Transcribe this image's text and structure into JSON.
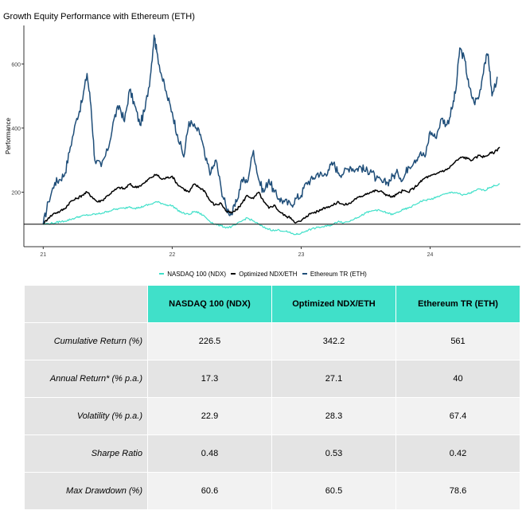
{
  "chart_data": {
    "type": "line",
    "title": "Growth Equity Performance with Ethereum (ETH)",
    "xlabel": "",
    "ylabel": "Performance",
    "x_ticks": [
      "21",
      "22",
      "23",
      "24"
    ],
    "y_ticks": [
      200,
      400,
      600
    ],
    "ylim": [
      30,
      720
    ],
    "xlim": [
      2020.85,
      2024.7
    ],
    "reference_line": 100,
    "grid": false,
    "legend_position": "bottom",
    "series": [
      {
        "name": "Ethereum TR (ETH)",
        "color": "#1f4e79",
        "x": [
          2021.0,
          2021.04,
          2021.09,
          2021.13,
          2021.17,
          2021.21,
          2021.26,
          2021.3,
          2021.34,
          2021.37,
          2021.4,
          2021.45,
          2021.5,
          2021.55,
          2021.59,
          2021.63,
          2021.67,
          2021.71,
          2021.75,
          2021.79,
          2021.83,
          2021.86,
          2021.88,
          2021.92,
          2021.96,
          2022.0,
          2022.04,
          2022.09,
          2022.13,
          2022.18,
          2022.22,
          2022.26,
          2022.3,
          2022.34,
          2022.38,
          2022.42,
          2022.46,
          2022.5,
          2022.54,
          2022.58,
          2022.63,
          2022.67,
          2022.71,
          2022.75,
          2022.79,
          2022.83,
          2022.87,
          2022.92,
          2022.96,
          2023.0,
          2023.04,
          2023.09,
          2023.13,
          2023.17,
          2023.21,
          2023.25,
          2023.29,
          2023.33,
          2023.38,
          2023.42,
          2023.46,
          2023.5,
          2023.54,
          2023.58,
          2023.63,
          2023.67,
          2023.71,
          2023.75,
          2023.79,
          2023.83,
          2023.88,
          2023.92,
          2023.96,
          2024.0,
          2024.04,
          2024.09,
          2024.13,
          2024.17,
          2024.2,
          2024.23,
          2024.27,
          2024.3,
          2024.34,
          2024.38,
          2024.42,
          2024.45,
          2024.48,
          2024.52
        ],
        "values": [
          100,
          170,
          230,
          240,
          260,
          340,
          430,
          480,
          570,
          470,
          300,
          280,
          330,
          430,
          470,
          420,
          520,
          470,
          410,
          460,
          560,
          690,
          640,
          560,
          500,
          450,
          380,
          310,
          420,
          400,
          380,
          300,
          260,
          300,
          210,
          150,
          130,
          170,
          240,
          230,
          330,
          240,
          200,
          240,
          200,
          180,
          170,
          160,
          180,
          190,
          230,
          240,
          260,
          250,
          270,
          290,
          260,
          260,
          280,
          270,
          280,
          265,
          270,
          240,
          230,
          230,
          250,
          260,
          240,
          280,
          300,
          320,
          310,
          390,
          370,
          430,
          410,
          460,
          520,
          650,
          610,
          530,
          480,
          500,
          600,
          630,
          500,
          560
        ]
      },
      {
        "name": "Optimized NDX/ETH",
        "color": "#000000",
        "x": [
          2021.0,
          2021.04,
          2021.09,
          2021.13,
          2021.17,
          2021.21,
          2021.26,
          2021.3,
          2021.34,
          2021.38,
          2021.42,
          2021.46,
          2021.5,
          2021.55,
          2021.59,
          2021.63,
          2021.67,
          2021.71,
          2021.75,
          2021.79,
          2021.83,
          2021.88,
          2021.92,
          2021.96,
          2022.0,
          2022.04,
          2022.09,
          2022.13,
          2022.17,
          2022.21,
          2022.25,
          2022.29,
          2022.33,
          2022.38,
          2022.42,
          2022.46,
          2022.5,
          2022.54,
          2022.58,
          2022.63,
          2022.67,
          2022.71,
          2022.75,
          2022.79,
          2022.83,
          2022.88,
          2022.92,
          2022.96,
          2023.0,
          2023.04,
          2023.08,
          2023.13,
          2023.17,
          2023.21,
          2023.25,
          2023.29,
          2023.33,
          2023.38,
          2023.42,
          2023.46,
          2023.5,
          2023.54,
          2023.58,
          2023.63,
          2023.67,
          2023.71,
          2023.75,
          2023.79,
          2023.83,
          2023.88,
          2023.92,
          2023.96,
          2024.0,
          2024.04,
          2024.08,
          2024.13,
          2024.17,
          2024.21,
          2024.25,
          2024.29,
          2024.33,
          2024.38,
          2024.42,
          2024.46,
          2024.5,
          2024.54
        ],
        "values": [
          100,
          120,
          135,
          140,
          150,
          170,
          180,
          190,
          200,
          185,
          170,
          175,
          190,
          205,
          215,
          210,
          225,
          215,
          220,
          230,
          245,
          255,
          240,
          245,
          250,
          225,
          210,
          200,
          225,
          215,
          205,
          175,
          160,
          165,
          140,
          135,
          145,
          165,
          190,
          180,
          200,
          170,
          150,
          160,
          140,
          125,
          120,
          105,
          110,
          125,
          135,
          140,
          150,
          155,
          160,
          170,
          160,
          165,
          180,
          185,
          195,
          200,
          205,
          200,
          190,
          185,
          195,
          205,
          200,
          215,
          230,
          245,
          250,
          255,
          265,
          270,
          285,
          300,
          310,
          305,
          300,
          315,
          310,
          320,
          325,
          340
        ]
      },
      {
        "name": "NASDAQ 100 (NDX)",
        "color": "#40e0c9",
        "x": [
          2021.0,
          2021.04,
          2021.09,
          2021.13,
          2021.17,
          2021.21,
          2021.25,
          2021.29,
          2021.33,
          2021.38,
          2021.42,
          2021.46,
          2021.5,
          2021.54,
          2021.58,
          2021.63,
          2021.67,
          2021.71,
          2021.75,
          2021.79,
          2021.83,
          2021.88,
          2021.92,
          2021.96,
          2022.0,
          2022.04,
          2022.08,
          2022.13,
          2022.17,
          2022.21,
          2022.25,
          2022.29,
          2022.33,
          2022.38,
          2022.42,
          2022.46,
          2022.5,
          2022.54,
          2022.58,
          2022.63,
          2022.67,
          2022.71,
          2022.75,
          2022.79,
          2022.83,
          2022.88,
          2022.92,
          2022.96,
          2023.0,
          2023.04,
          2023.08,
          2023.13,
          2023.17,
          2023.21,
          2023.25,
          2023.29,
          2023.33,
          2023.38,
          2023.42,
          2023.46,
          2023.5,
          2023.54,
          2023.58,
          2023.63,
          2023.67,
          2023.71,
          2023.75,
          2023.79,
          2023.83,
          2023.88,
          2023.92,
          2023.96,
          2024.0,
          2024.04,
          2024.08,
          2024.13,
          2024.17,
          2024.21,
          2024.25,
          2024.29,
          2024.33,
          2024.38,
          2024.42,
          2024.46,
          2024.5,
          2024.54
        ],
        "values": [
          100,
          102,
          104,
          108,
          110,
          115,
          120,
          125,
          128,
          130,
          132,
          135,
          140,
          145,
          148,
          150,
          155,
          150,
          152,
          158,
          162,
          170,
          165,
          160,
          158,
          145,
          135,
          130,
          140,
          135,
          125,
          110,
          100,
          95,
          90,
          92,
          100,
          110,
          120,
          110,
          100,
          90,
          85,
          80,
          82,
          78,
          72,
          68,
          72,
          80,
          85,
          90,
          92,
          95,
          100,
          110,
          105,
          110,
          120,
          125,
          135,
          140,
          145,
          140,
          135,
          130,
          138,
          145,
          150,
          160,
          170,
          175,
          178,
          182,
          190,
          195,
          200,
          198,
          190,
          195,
          200,
          210,
          205,
          215,
          220,
          226
        ]
      }
    ]
  },
  "table": {
    "columns": [
      "NASDAQ 100 (NDX)",
      "Optimized NDX/ETH",
      "Ethereum TR (ETH)"
    ],
    "header_color": "#40e0c9",
    "rows": [
      {
        "label": "Cumulative Return (%)",
        "values": [
          "226.5",
          "342.2",
          "561"
        ]
      },
      {
        "label": "Annual Return* (% p.a.)",
        "values": [
          "17.3",
          "27.1",
          "40"
        ]
      },
      {
        "label": "Volatility (% p.a.)",
        "values": [
          "22.9",
          "28.3",
          "67.4"
        ]
      },
      {
        "label": "Sharpe Ratio",
        "values": [
          "0.48",
          "0.53",
          "0.42"
        ]
      },
      {
        "label": "Max Drawdown (%)",
        "values": [
          "60.6",
          "60.5",
          "78.6"
        ]
      }
    ]
  }
}
